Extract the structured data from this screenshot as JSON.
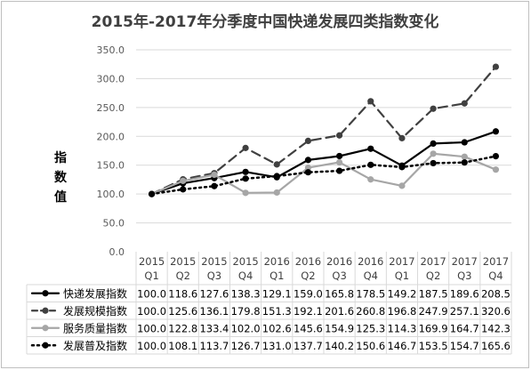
{
  "chart_data": {
    "type": "line",
    "title": "2015年-2017年分季度中国快递发展四类指数变化",
    "ylabel": "指数值",
    "ylim": [
      0,
      350
    ],
    "yticks": [
      0.0,
      50.0,
      100.0,
      150.0,
      200.0,
      250.0,
      300.0,
      350.0
    ],
    "grid": true,
    "legend": "data-table-bottom",
    "categories": [
      [
        "2015",
        "Q1"
      ],
      [
        "2015",
        "Q2"
      ],
      [
        "2015",
        "Q3"
      ],
      [
        "2015",
        "Q4"
      ],
      [
        "2016",
        "Q1"
      ],
      [
        "2016",
        "Q2"
      ],
      [
        "2016",
        "Q3"
      ],
      [
        "2016",
        "Q4"
      ],
      [
        "2017",
        "Q1"
      ],
      [
        "2017",
        "Q2"
      ],
      [
        "2017",
        "Q3"
      ],
      [
        "2017",
        "Q4"
      ]
    ],
    "series": [
      {
        "name": "快递发展指数",
        "color": "#000000",
        "style": "solid",
        "values": [
          100.0,
          118.6,
          127.6,
          138.3,
          129.1,
          159.0,
          165.8,
          178.5,
          149.2,
          187.5,
          189.6,
          208.5
        ]
      },
      {
        "name": "发展规模指数",
        "color": "#404040",
        "style": "dashed",
        "values": [
          100.0,
          125.6,
          136.1,
          179.8,
          151.3,
          192.1,
          201.6,
          260.8,
          196.8,
          247.9,
          257.1,
          320.6
        ]
      },
      {
        "name": "服务质量指数",
        "color": "#a6a6a6",
        "style": "solid",
        "values": [
          100.0,
          122.8,
          133.4,
          102.0,
          102.6,
          145.6,
          154.9,
          125.3,
          114.3,
          169.9,
          164.7,
          142.3
        ]
      },
      {
        "name": "发展普及指数",
        "color": "#000000",
        "style": "dotted",
        "values": [
          100.0,
          108.1,
          113.7,
          126.7,
          131.0,
          137.7,
          140.2,
          150.6,
          146.7,
          153.5,
          154.7,
          165.6
        ]
      }
    ]
  }
}
